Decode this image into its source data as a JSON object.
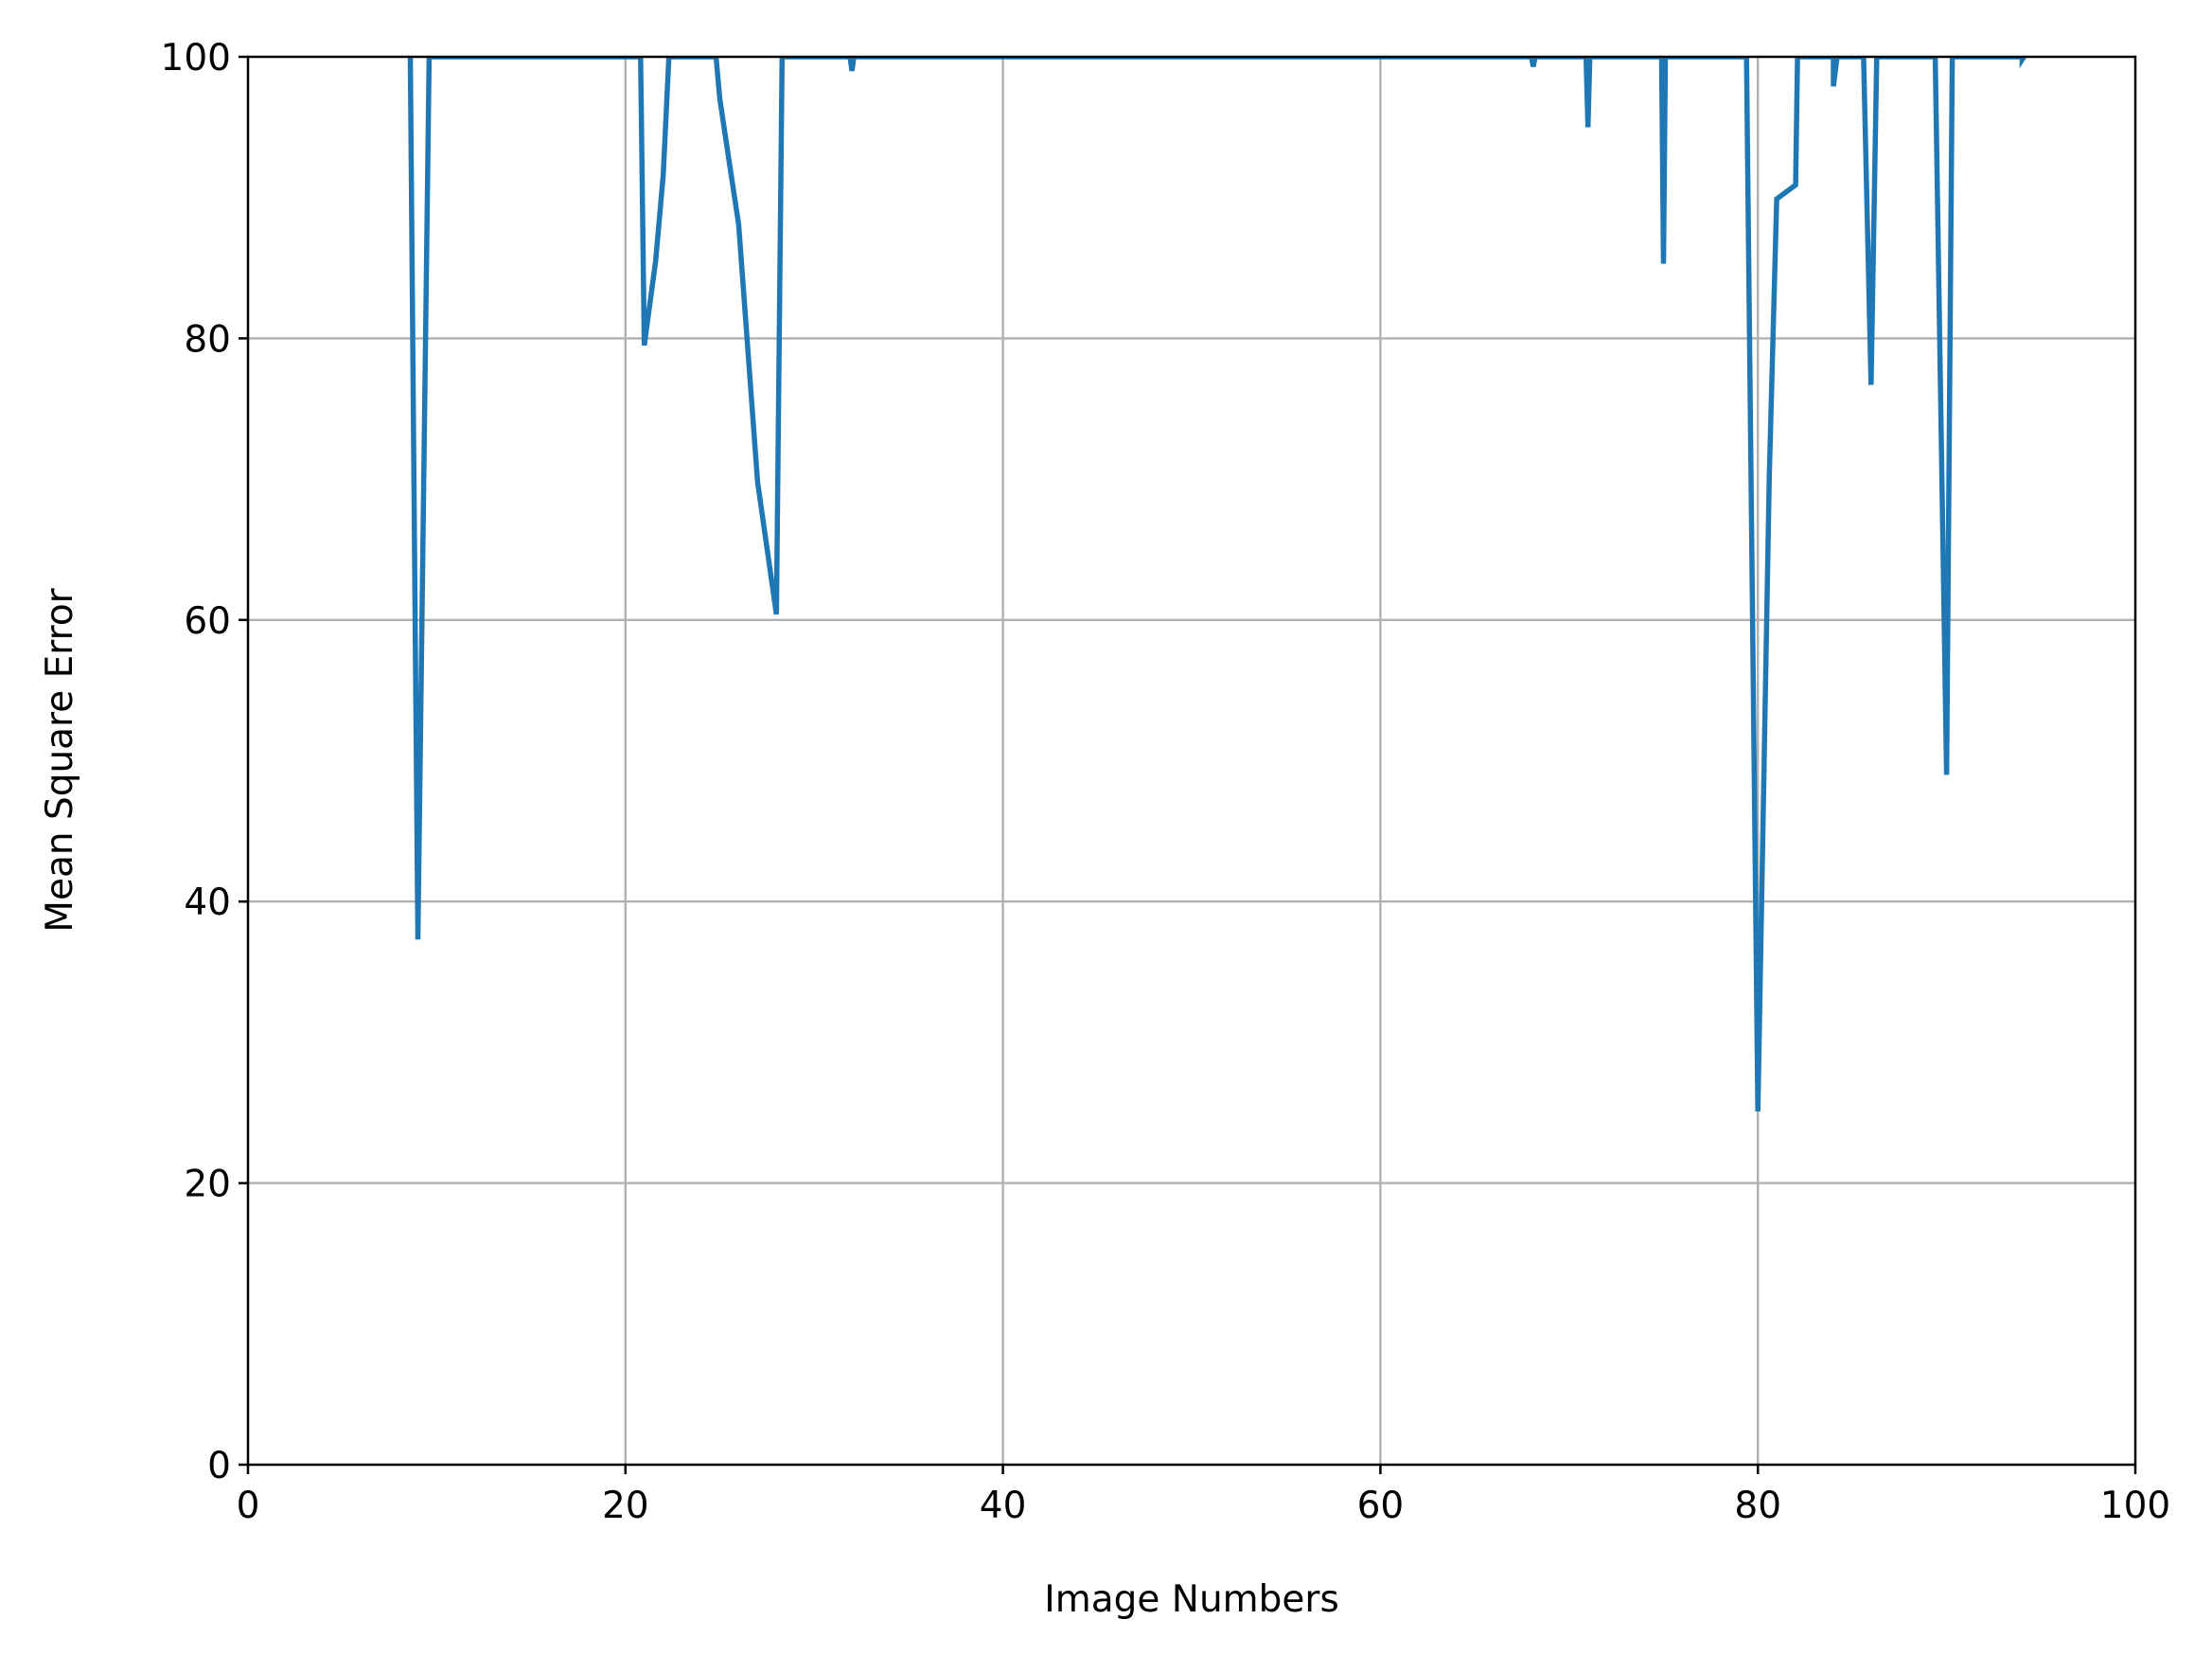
{
  "chart_data": {
    "type": "line",
    "title": "",
    "xlabel": "Image Numbers",
    "ylabel": "Mean Square Error",
    "xlim": [
      0,
      100
    ],
    "ylim": [
      0,
      100
    ],
    "xticks": [
      0,
      20,
      40,
      60,
      80,
      100
    ],
    "yticks": [
      0,
      20,
      40,
      60,
      80,
      100
    ],
    "grid": true,
    "legend": "none",
    "series": [
      {
        "color": "#1f77b4",
        "x": [
          8.6,
          9,
          9.6,
          20.8,
          21,
          21.6,
          22,
          22.3,
          24.8,
          25,
          25.5,
          26,
          27,
          28,
          28.3,
          31.9,
          32,
          32.1,
          68.0,
          68.1,
          68.2,
          70.9,
          71,
          71.1,
          74.9,
          75,
          75.1,
          79.4,
          80,
          80.6,
          81,
          82,
          82.1,
          84.0,
          84,
          84.2,
          85.6,
          86,
          86.3,
          89.4,
          90,
          90.3,
          94.0,
          94,
          94.1
        ],
        "y": [
          100,
          37.3,
          100,
          100,
          79.5,
          85.5,
          91.6,
          100,
          100,
          97.0,
          92.5,
          88.1,
          69.8,
          60.4,
          100,
          100,
          99.0,
          100,
          100,
          99.3,
          100,
          100,
          95.0,
          100,
          100,
          85.3,
          100,
          100,
          25.1,
          70.0,
          89.9,
          90.9,
          100,
          100,
          97.9,
          100,
          100,
          76.7,
          100,
          100,
          49.0,
          100,
          100,
          99.8,
          100
        ]
      }
    ]
  }
}
